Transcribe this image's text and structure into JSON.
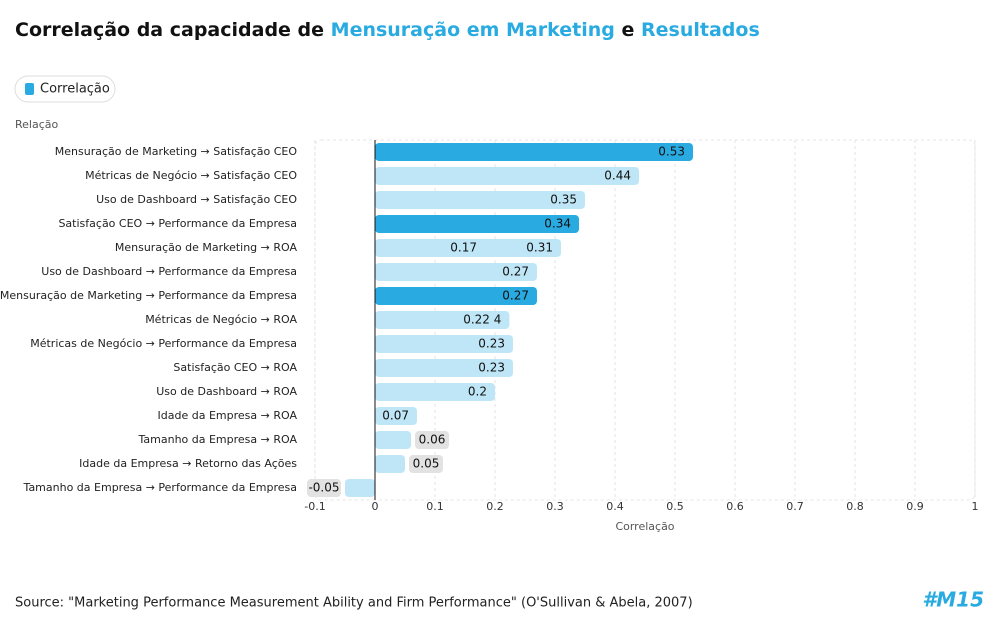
{
  "chart_data": {
    "type": "barh",
    "title_parts": [
      {
        "text": "Correlação da capacidade de ",
        "color": "#111111"
      },
      {
        "text": "Mensuração em Marketing",
        "color": "#29abe2"
      },
      {
        "text": " e ",
        "color": "#111111"
      },
      {
        "text": "Resultados",
        "color": "#29abe2"
      }
    ],
    "legend": {
      "name": "Correlação",
      "color": "#29abe2"
    },
    "y_label": "Relação",
    "x_label": "Correlação",
    "categories": [
      "Mensuração de Marketing → Satisfação CEO",
      "Métricas de Negócio → Satisfação CEO",
      "Uso de Dashboard → Satisfação CEO",
      "Satisfação CEO → Performance da Empresa",
      "Mensuração de Marketing → ROA",
      "Uso de Dashboard → Performance da Empresa",
      "Mensuração de Marketing → Performance da Empresa",
      "Métricas de Negócio → ROA",
      "Métricas de Negócio → Performance da Empresa",
      "Satisfação CEO → ROA",
      "Uso de Dashboard → ROA",
      "Idade da Empresa → ROA",
      "Tamanho da Empresa → ROA",
      "Idade da Empresa → Retorno das Ações",
      "Tamanho da Empresa → Performance da Empresa"
    ],
    "values": [
      0.53,
      0.44,
      0.35,
      0.34,
      0.31,
      0.27,
      0.27,
      0.224,
      0.23,
      0.23,
      0.2,
      0.07,
      0.06,
      0.05,
      -0.05
    ],
    "value_labels": [
      "0.53",
      "0.44",
      "0.35",
      "0.34",
      "0.31",
      "0.27",
      "0.27",
      "0.22 4",
      "0.23",
      "0.23",
      "0.2",
      "0.07",
      "0.06",
      "0.05",
      "-0.05"
    ],
    "colors": [
      "#29abe2",
      "#bfe6f7",
      "#bfe6f7",
      "#29abe2",
      "#bfe6f7",
      "#bfe6f7",
      "#29abe2",
      "#bfe6f7",
      "#bfe6f7",
      "#bfe6f7",
      "#bfe6f7",
      "#bfe6f7",
      "#bfe6f7",
      "#bfe6f7",
      "#bfe6f7"
    ],
    "annotations": [
      {
        "text": "0.17",
        "x": 0.17,
        "category": "Mensuração de Marketing → ROA"
      }
    ],
    "xlim": [
      -0.1,
      1
    ],
    "xticks": [
      -0.1,
      0,
      0.1,
      0.2,
      0.3,
      0.4,
      0.5,
      0.6,
      0.7,
      0.8,
      0.9,
      1
    ],
    "grid": true
  },
  "source": "Source: \"Marketing Performance Measurement Ability and Firm Performance\" (O'Sullivan & Abela, 2007)",
  "logo": "#M15"
}
